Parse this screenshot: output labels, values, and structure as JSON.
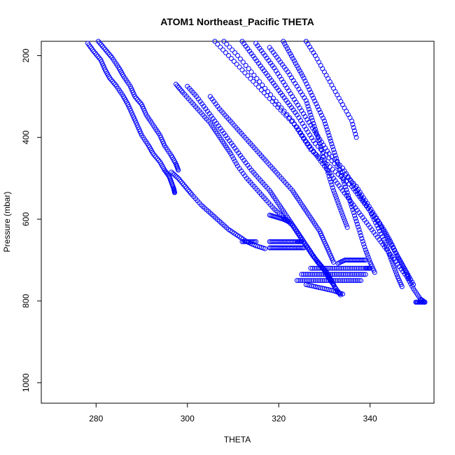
{
  "chart_data": {
    "type": "scatter",
    "title": "ATOM1 Northeast_Pacific THETA",
    "xlabel": "THETA",
    "ylabel": "Pressure (mbar)",
    "xlim": [
      268,
      354
    ],
    "ylim": [
      1050,
      165
    ],
    "y_inverted": true,
    "xticks": [
      280,
      300,
      320,
      340
    ],
    "yticks": [
      200,
      400,
      600,
      800,
      1000
    ],
    "grid": false,
    "legend": "none",
    "marker": "open-circle",
    "color": "#0000ff",
    "profiles": [
      {
        "points": [
          [
            278.2,
            170
          ],
          [
            279.5,
            190
          ],
          [
            281,
            210
          ],
          [
            282,
            235
          ],
          [
            283,
            255
          ],
          [
            284.5,
            275
          ],
          [
            286,
            300
          ],
          [
            287,
            320
          ],
          [
            288,
            345
          ],
          [
            289,
            370
          ],
          [
            290,
            395
          ],
          [
            291.5,
            420
          ],
          [
            292.5,
            440
          ],
          [
            294,
            460
          ],
          [
            295,
            480
          ],
          [
            296,
            495
          ],
          [
            296.5,
            510
          ],
          [
            297,
            525
          ],
          [
            297.2,
            535
          ]
        ]
      },
      {
        "points": [
          [
            280.5,
            165
          ],
          [
            282,
            185
          ],
          [
            283.5,
            205
          ],
          [
            285,
            230
          ],
          [
            286,
            250
          ],
          [
            287.5,
            275
          ],
          [
            288.5,
            300
          ],
          [
            290,
            320
          ],
          [
            291,
            345
          ],
          [
            292.5,
            370
          ],
          [
            294,
            395
          ],
          [
            295,
            420
          ],
          [
            296.5,
            445
          ],
          [
            297.5,
            465
          ],
          [
            298,
            480
          ]
        ]
      },
      {
        "points": [
          [
            297.5,
            270
          ],
          [
            299,
            290
          ],
          [
            301,
            315
          ],
          [
            303,
            340
          ],
          [
            305,
            365
          ],
          [
            306.5,
            390
          ],
          [
            308,
            415
          ],
          [
            309.5,
            440
          ],
          [
            311,
            470
          ],
          [
            313,
            500
          ],
          [
            315,
            525
          ],
          [
            317,
            550
          ],
          [
            319,
            575
          ],
          [
            321,
            595
          ],
          [
            323,
            615
          ],
          [
            324.5,
            640
          ],
          [
            326,
            665
          ],
          [
            327.5,
            690
          ],
          [
            329,
            710
          ],
          [
            330.5,
            730
          ],
          [
            331.5,
            750
          ],
          [
            332.5,
            770
          ],
          [
            333.5,
            785
          ]
        ]
      },
      {
        "points": [
          [
            296.5,
            485
          ],
          [
            298,
            500
          ],
          [
            299.5,
            520
          ],
          [
            301,
            540
          ],
          [
            303,
            565
          ],
          [
            305,
            585
          ],
          [
            307,
            605
          ],
          [
            309,
            625
          ],
          [
            311,
            640
          ],
          [
            313,
            655
          ],
          [
            315,
            665
          ],
          [
            317,
            672
          ]
        ]
      },
      {
        "points": [
          [
            300,
            275
          ],
          [
            302,
            300
          ],
          [
            304,
            330
          ],
          [
            306,
            360
          ],
          [
            308,
            390
          ],
          [
            310,
            420
          ],
          [
            312,
            450
          ],
          [
            314,
            480
          ],
          [
            316,
            505
          ],
          [
            318,
            530
          ],
          [
            319.5,
            555
          ],
          [
            321,
            580
          ],
          [
            322.5,
            605
          ],
          [
            324,
            630
          ],
          [
            325.5,
            655
          ],
          [
            327,
            680
          ],
          [
            328.5,
            705
          ],
          [
            330,
            725
          ],
          [
            331,
            745
          ],
          [
            332,
            760
          ]
        ]
      },
      {
        "points": [
          [
            305,
            300
          ],
          [
            307,
            330
          ],
          [
            309,
            355
          ],
          [
            311,
            380
          ],
          [
            313,
            405
          ],
          [
            315,
            430
          ],
          [
            317,
            455
          ],
          [
            319,
            480
          ],
          [
            321,
            505
          ],
          [
            323,
            530
          ],
          [
            324.5,
            555
          ],
          [
            326,
            580
          ],
          [
            327.5,
            605
          ],
          [
            329,
            630
          ],
          [
            330,
            655
          ],
          [
            331,
            680
          ],
          [
            332,
            705
          ]
        ]
      },
      {
        "points": [
          [
            306,
            165
          ],
          [
            309,
            200
          ],
          [
            312,
            235
          ],
          [
            315,
            270
          ],
          [
            318,
            305
          ],
          [
            321,
            340
          ],
          [
            324,
            375
          ],
          [
            326,
            410
          ],
          [
            328,
            440
          ],
          [
            330,
            470
          ],
          [
            332,
            500
          ],
          [
            334,
            530
          ],
          [
            336,
            560
          ],
          [
            338,
            590
          ],
          [
            340,
            620
          ],
          [
            342,
            650
          ],
          [
            344,
            680
          ],
          [
            346,
            710
          ],
          [
            348,
            740
          ],
          [
            349.5,
            770
          ],
          [
            351,
            795
          ],
          [
            352,
            803
          ]
        ]
      },
      {
        "points": [
          [
            308,
            165
          ],
          [
            311,
            200
          ],
          [
            314,
            240
          ],
          [
            317,
            280
          ],
          [
            320,
            320
          ],
          [
            323,
            360
          ],
          [
            325,
            395
          ],
          [
            327,
            430
          ],
          [
            330,
            460
          ],
          [
            333,
            490
          ],
          [
            336,
            520
          ],
          [
            338,
            550
          ],
          [
            340,
            580
          ],
          [
            342,
            610
          ],
          [
            343.5,
            640
          ],
          [
            345,
            670
          ],
          [
            346.5,
            700
          ],
          [
            348,
            730
          ],
          [
            349.5,
            760
          ]
        ]
      },
      {
        "points": [
          [
            312,
            165
          ],
          [
            314,
            195
          ],
          [
            316,
            225
          ],
          [
            318,
            255
          ],
          [
            320,
            285
          ],
          [
            322,
            315
          ],
          [
            324,
            345
          ],
          [
            326,
            380
          ],
          [
            328,
            415
          ],
          [
            331,
            450
          ],
          [
            334,
            485
          ],
          [
            337,
            520
          ],
          [
            339,
            555
          ],
          [
            341,
            590
          ],
          [
            343,
            625
          ],
          [
            344.5,
            655
          ],
          [
            346,
            690
          ],
          [
            347.5,
            720
          ],
          [
            348.5,
            745
          ]
        ]
      },
      {
        "points": [
          [
            315,
            170
          ],
          [
            317,
            200
          ],
          [
            319,
            230
          ],
          [
            321,
            265
          ],
          [
            323,
            300
          ],
          [
            325,
            335
          ],
          [
            327,
            370
          ],
          [
            329,
            405
          ],
          [
            331,
            440
          ],
          [
            334,
            475
          ],
          [
            336,
            510
          ],
          [
            338,
            545
          ],
          [
            340,
            580
          ],
          [
            341.5,
            615
          ],
          [
            343,
            650
          ],
          [
            344,
            680
          ],
          [
            345,
            710
          ],
          [
            346,
            740
          ],
          [
            347,
            765
          ]
        ]
      },
      {
        "points": [
          [
            318,
            180
          ],
          [
            320,
            210
          ],
          [
            322,
            240
          ],
          [
            324,
            275
          ],
          [
            326,
            310
          ],
          [
            327,
            345
          ],
          [
            328,
            380
          ],
          [
            329,
            415
          ],
          [
            330,
            455
          ],
          [
            331,
            495
          ],
          [
            332,
            530
          ],
          [
            333,
            560
          ],
          [
            334,
            590
          ],
          [
            335,
            620
          ]
        ]
      },
      {
        "points": [
          [
            321,
            165
          ],
          [
            322.5,
            195
          ],
          [
            324,
            225
          ],
          [
            325.5,
            255
          ],
          [
            327,
            290
          ],
          [
            328.5,
            325
          ],
          [
            330,
            360
          ],
          [
            331,
            395
          ],
          [
            332,
            430
          ],
          [
            333,
            465
          ],
          [
            334,
            500
          ],
          [
            335,
            535
          ],
          [
            336,
            570
          ],
          [
            337,
            605
          ],
          [
            338,
            640
          ],
          [
            339,
            675
          ],
          [
            340,
            705
          ],
          [
            341,
            730
          ]
        ]
      },
      {
        "points": [
          [
            326,
            165
          ],
          [
            328,
            200
          ],
          [
            330,
            240
          ],
          [
            332,
            280
          ],
          [
            334,
            320
          ],
          [
            336,
            360
          ],
          [
            337,
            400
          ]
        ]
      },
      {
        "points": [
          [
            312,
            655
          ],
          [
            313.5,
            655
          ],
          [
            315,
            655
          ]
        ]
      },
      {
        "points": [
          [
            318,
            590
          ],
          [
            319.5,
            595
          ],
          [
            321,
            600
          ],
          [
            322,
            605
          ]
        ]
      },
      {
        "points": [
          [
            318,
            655
          ],
          [
            319.5,
            655
          ],
          [
            321,
            655
          ],
          [
            322.5,
            655
          ],
          [
            324,
            655
          ],
          [
            325,
            655
          ]
        ]
      },
      {
        "points": [
          [
            318,
            670
          ],
          [
            319.5,
            670
          ],
          [
            321,
            670
          ],
          [
            322.5,
            670
          ],
          [
            324,
            670
          ],
          [
            325.5,
            670
          ]
        ]
      },
      {
        "points": [
          [
            327,
            720
          ],
          [
            329,
            720
          ],
          [
            331,
            720
          ],
          [
            333,
            720
          ],
          [
            335,
            720
          ],
          [
            337,
            720
          ],
          [
            339,
            720
          ],
          [
            340,
            720
          ]
        ]
      },
      {
        "points": [
          [
            325,
            735
          ],
          [
            327,
            735
          ],
          [
            329,
            735
          ],
          [
            331,
            735
          ],
          [
            333,
            735
          ],
          [
            335,
            735
          ],
          [
            337,
            735
          ],
          [
            339,
            735
          ]
        ]
      },
      {
        "points": [
          [
            324,
            750
          ],
          [
            326,
            750
          ],
          [
            328,
            750
          ],
          [
            330,
            750
          ],
          [
            332,
            750
          ],
          [
            334,
            750
          ],
          [
            336,
            750
          ],
          [
            338,
            750
          ]
        ]
      },
      {
        "points": [
          [
            326,
            760
          ],
          [
            328,
            765
          ],
          [
            330,
            770
          ],
          [
            332,
            775
          ],
          [
            334,
            783
          ]
        ]
      },
      {
        "points": [
          [
            333,
            708
          ],
          [
            334.5,
            700
          ],
          [
            336,
            700
          ],
          [
            337.5,
            700
          ],
          [
            339,
            700
          ]
        ]
      },
      {
        "points": [
          [
            350,
            803
          ],
          [
            351,
            803
          ],
          [
            352,
            803
          ]
        ]
      }
    ]
  }
}
